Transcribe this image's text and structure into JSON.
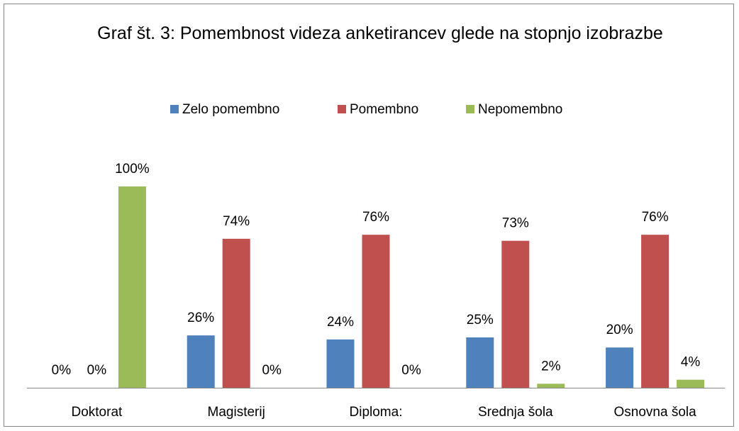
{
  "chart_data": {
    "type": "bar",
    "title": "Graf št. 3: Pomembnost videza anketirancev glede na stopnjo izobrazbe",
    "categories": [
      "Doktorat",
      "Magisterij",
      "Diploma:",
      "Srednja šola",
      "Osnovna šola"
    ],
    "series": [
      {
        "name": "Zelo pomembno",
        "color": "#4f81bd",
        "values": [
          0,
          26,
          24,
          25,
          20
        ],
        "value_labels": [
          "0%",
          "26%",
          "24%",
          "25%",
          "20%"
        ]
      },
      {
        "name": "Pomembno",
        "color": "#c0504d",
        "values": [
          0,
          74,
          76,
          73,
          76
        ],
        "value_labels": [
          "0%",
          "74%",
          "76%",
          "73%",
          "76%"
        ]
      },
      {
        "name": "Nepomembno",
        "color": "#9bbb59",
        "values": [
          100,
          0,
          0,
          2,
          4
        ],
        "value_labels": [
          "100%",
          "0%",
          "0%",
          "2%",
          "4%"
        ]
      }
    ],
    "legend": "top"
  }
}
